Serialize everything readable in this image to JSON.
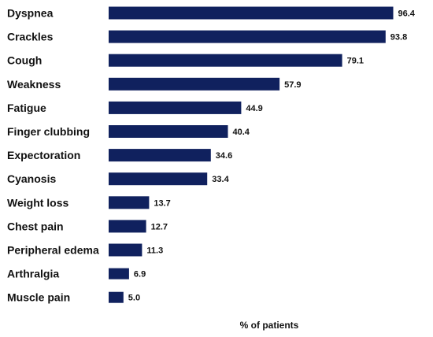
{
  "chart_data": {
    "type": "bar",
    "orientation": "horizontal",
    "categories": [
      "Dyspnea",
      "Crackles",
      "Cough",
      "Weakness",
      "Fatigue",
      "Finger clubbing",
      "Expectoration",
      "Cyanosis",
      "Weight loss",
      "Chest pain",
      "Peripheral edema",
      "Arthralgia",
      "Muscle pain"
    ],
    "values": [
      96.4,
      93.8,
      79.1,
      57.9,
      44.9,
      40.4,
      34.6,
      33.4,
      13.7,
      12.7,
      11.3,
      6.9,
      5.0
    ],
    "value_labels": [
      "96.4",
      "93.8",
      "79.1",
      "57.9",
      "44.9",
      "40.4",
      "34.6",
      "33.4",
      "13.7",
      "12.7",
      "11.3",
      "6.9",
      "5.0"
    ],
    "xlabel": "% of patients",
    "ylabel": "",
    "xlim": [
      0,
      100
    ],
    "grid": false,
    "legend": "none",
    "bar_color": "#10215e"
  }
}
